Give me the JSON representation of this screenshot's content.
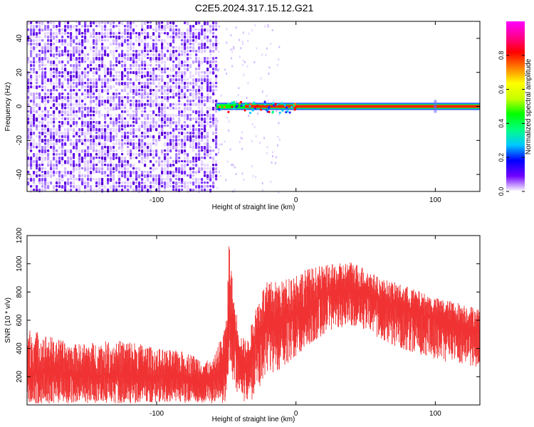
{
  "title": "C2E5.2024.317.15.12.G21",
  "chart_data": [
    {
      "type": "heatmap",
      "xlabel": "Height of straight line (km)",
      "ylabel": "Frequency (Hz)",
      "xlim": [
        -193,
        132
      ],
      "ylim": [
        -50,
        50
      ],
      "xticks": [
        -100,
        0,
        100
      ],
      "xtick_labels": [
        "-100",
        "0",
        "100"
      ],
      "yticks": [
        -40,
        -20,
        0,
        20,
        40
      ],
      "ytick_labels": [
        "-40",
        "-20",
        "0",
        "20",
        "40"
      ],
      "noise_region_x": [
        -193,
        -57
      ],
      "signal_band": {
        "x_start": -57,
        "x_end": 132,
        "frequency": 0
      },
      "colorbar": {
        "label": "Normalized spectral amplitude",
        "range": [
          0,
          1
        ],
        "ticks": [
          0.0,
          0.2,
          0.4,
          0.6,
          0.8
        ],
        "tick_labels": [
          "0.0",
          "0.2",
          "0.4",
          "0.6",
          "0.8"
        ],
        "colors": [
          "#ffffff",
          "#7000ff",
          "#0000ff",
          "#00c8ff",
          "#00ff80",
          "#00ff00",
          "#c8ff00",
          "#ffff00",
          "#ff8000",
          "#ff0000",
          "#ff0090",
          "#ff00ff"
        ]
      },
      "legend": "none",
      "grid": false
    },
    {
      "type": "line",
      "xlabel": "Height of straight line (km)",
      "ylabel": "SNR (10 * v/v)",
      "xlim": [
        -193,
        132
      ],
      "ylim": [
        0,
        1200
      ],
      "xticks": [
        -100,
        0,
        100
      ],
      "xtick_labels": [
        "-100",
        "0",
        "100"
      ],
      "yticks": [
        200,
        400,
        600,
        800,
        1000,
        1200
      ],
      "ytick_labels": [
        "200",
        "400",
        "600",
        "800",
        "1000",
        "1200"
      ],
      "color": "#f03232",
      "series": [
        {
          "x": [
            -193,
            -180,
            -160,
            -140,
            -120,
            -100,
            -80,
            -60,
            -50,
            -48,
            -45,
            -42,
            -40,
            -35,
            -30,
            -25,
            -20,
            -10,
            0,
            10,
            20,
            30,
            40,
            50,
            60,
            80,
            100,
            120,
            132
          ],
          "mean": [
            230,
            240,
            215,
            210,
            205,
            200,
            190,
            180,
            300,
            700,
            550,
            420,
            330,
            280,
            420,
            500,
            560,
            590,
            660,
            720,
            770,
            800,
            820,
            790,
            740,
            670,
            610,
            560,
            530
          ],
          "upper": [
            550,
            500,
            430,
            450,
            460,
            400,
            380,
            300,
            600,
            1200,
            800,
            620,
            500,
            450,
            650,
            820,
            880,
            880,
            940,
            970,
            990,
            1000,
            1020,
            970,
            900,
            840,
            760,
            720,
            680
          ],
          "lower": [
            10,
            10,
            10,
            10,
            10,
            10,
            10,
            10,
            10,
            300,
            150,
            80,
            40,
            10,
            50,
            120,
            200,
            260,
            330,
            420,
            500,
            540,
            560,
            520,
            460,
            380,
            320,
            280,
            260
          ]
        }
      ],
      "legend": "none",
      "grid": false
    }
  ]
}
